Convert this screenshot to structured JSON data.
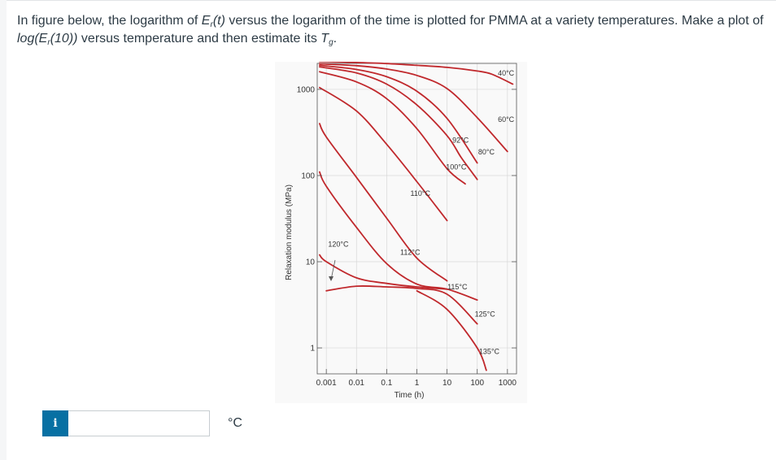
{
  "question": {
    "intro": "In figure below, the logarithm of ",
    "er": "E",
    "er_sub": "r",
    "er_arg": "(t)",
    "mid": " versus the logarithm of the time is plotted for PMMA at a variety temperatures. Make a plot of ",
    "log_pre": "log(E",
    "log_sub": "r",
    "log_post": "(10))",
    "end": " versus temperature and then estimate its ",
    "tg": "T",
    "tg_sub": "g",
    "period": "."
  },
  "answer": {
    "info_label": "i",
    "input_value": "",
    "unit": "°C"
  },
  "colors": {
    "curve": "#c0282c",
    "text": "#2d3b45",
    "info": "#0770a3"
  },
  "chart_data": {
    "type": "line",
    "title": "",
    "xlabel": "Time (h)",
    "ylabel": "Relaxation modulus (MPa)",
    "x_scale": "log",
    "y_scale": "log",
    "xlim": [
      0.0005,
      2000
    ],
    "ylim": [
      0.5,
      2000
    ],
    "x_ticks": [
      0.001,
      0.01,
      0.1,
      1,
      10,
      100,
      1000
    ],
    "x_tick_labels": [
      "0.001",
      "0.01",
      "0.1",
      "1",
      "10",
      "100",
      "1000"
    ],
    "y_ticks": [
      1,
      10,
      100,
      1000
    ],
    "y_tick_labels": [
      "1",
      "10",
      "100",
      "1000"
    ],
    "grid": true,
    "series": [
      {
        "name": "40°C",
        "x": [
          0.0006,
          0.01,
          0.1,
          1,
          10,
          100,
          300,
          1500
        ],
        "y": [
          2100,
          2050,
          1990,
          1900,
          1800,
          1630,
          1500,
          1150
        ]
      },
      {
        "name": "60°C",
        "x": [
          0.0006,
          0.01,
          0.1,
          1,
          10,
          100,
          1000
        ],
        "y": [
          1980,
          1880,
          1720,
          1450,
          1020,
          470,
          190
        ]
      },
      {
        "name": "80°C",
        "x": [
          0.0006,
          0.01,
          0.1,
          1,
          10,
          100
        ],
        "y": [
          1900,
          1700,
          1400,
          950,
          460,
          140
        ]
      },
      {
        "name": "92°C",
        "x": [
          0.0006,
          0.01,
          0.1,
          1,
          10,
          30,
          100
        ],
        "y": [
          1820,
          1550,
          1150,
          660,
          290,
          160,
          90
        ]
      },
      {
        "name": "100°C",
        "x": [
          0.0006,
          0.01,
          0.1,
          1,
          10,
          40
        ],
        "y": [
          1600,
          1220,
          780,
          350,
          120,
          80
        ]
      },
      {
        "name": "110°C",
        "x": [
          0.0006,
          0.01,
          0.1,
          1,
          10
        ],
        "y": [
          1050,
          560,
          230,
          85,
          30
        ]
      },
      {
        "name": "112°C",
        "x": [
          0.0006,
          0.001,
          0.01,
          0.1,
          1,
          10
        ],
        "y": [
          400,
          280,
          95,
          32,
          11,
          6
        ]
      },
      {
        "name": "115°C",
        "x": [
          0.0006,
          0.001,
          0.01,
          0.1,
          1,
          10,
          100
        ],
        "y": [
          110,
          75,
          25,
          9.5,
          5.5,
          4.8,
          3.6
        ]
      },
      {
        "name": "120°C",
        "x": [
          0.0006,
          0.001,
          0.01,
          0.1,
          1,
          10
        ],
        "y": [
          12,
          10,
          6.5,
          5.6,
          5.1,
          4.8
        ]
      },
      {
        "name": "125°C",
        "x": [
          0.001,
          0.01,
          0.1,
          1,
          10,
          100
        ],
        "y": [
          4.6,
          5.2,
          5.1,
          4.9,
          4.2,
          1.9
        ]
      },
      {
        "name": "135°C",
        "x": [
          1,
          10,
          100,
          200
        ],
        "y": [
          4.6,
          2.8,
          1.0,
          0.55
        ]
      }
    ],
    "annotations": [
      {
        "text": "40°C",
        "x": 900,
        "y": 1450
      },
      {
        "text": "60°C",
        "x": 900,
        "y": 420
      },
      {
        "text": "80°C",
        "x": 200,
        "y": 175
      },
      {
        "text": "92°C",
        "x": 28,
        "y": 240
      },
      {
        "text": "100°C",
        "x": 20,
        "y": 118
      },
      {
        "text": "110°C",
        "x": 1.3,
        "y": 58
      },
      {
        "text": "112°C",
        "x": 0.6,
        "y": 12
      },
      {
        "text": "120°C",
        "x": 0.0025,
        "y": 15
      },
      {
        "text": "115°C",
        "x": 22,
        "y": 4.8
      },
      {
        "text": "125°C",
        "x": 180,
        "y": 2.3
      },
      {
        "text": "135°C",
        "x": 250,
        "y": 0.85
      }
    ]
  }
}
